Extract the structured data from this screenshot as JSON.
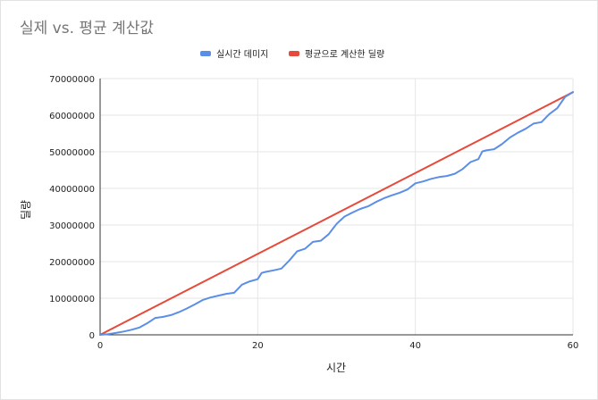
{
  "chart_data": {
    "type": "line",
    "title": "실제 vs. 평균 계산값",
    "xlabel": "시간",
    "ylabel": "딜량",
    "xlim": [
      0,
      60
    ],
    "ylim": [
      0,
      70000000
    ],
    "x_ticks": [
      "0",
      "20",
      "40",
      "60"
    ],
    "y_ticks": [
      "0",
      "10000000",
      "20000000",
      "30000000",
      "40000000",
      "50000000",
      "60000000",
      "70000000"
    ],
    "grid": true,
    "legend_position": "top",
    "series": [
      {
        "name": "실시간 데미지",
        "color": "#5b8ee6",
        "points": [
          [
            0,
            0
          ],
          [
            1,
            200000
          ],
          [
            2,
            500000
          ],
          [
            3,
            900000
          ],
          [
            4,
            1400000
          ],
          [
            5,
            2000000
          ],
          [
            6,
            3200000
          ],
          [
            7,
            4600000
          ],
          [
            8,
            4900000
          ],
          [
            9,
            5400000
          ],
          [
            10,
            6200000
          ],
          [
            11,
            7200000
          ],
          [
            12,
            8300000
          ],
          [
            13,
            9500000
          ],
          [
            14,
            10200000
          ],
          [
            15,
            10700000
          ],
          [
            16,
            11200000
          ],
          [
            17,
            11500000
          ],
          [
            18,
            13700000
          ],
          [
            19,
            14600000
          ],
          [
            20,
            15200000
          ],
          [
            20.5,
            16900000
          ],
          [
            21,
            17200000
          ],
          [
            22,
            17600000
          ],
          [
            23,
            18100000
          ],
          [
            24,
            20300000
          ],
          [
            25,
            22800000
          ],
          [
            26,
            23500000
          ],
          [
            27,
            25400000
          ],
          [
            28,
            25700000
          ],
          [
            29,
            27500000
          ],
          [
            30,
            30300000
          ],
          [
            31,
            32300000
          ],
          [
            32,
            33400000
          ],
          [
            33,
            34400000
          ],
          [
            34,
            35100000
          ],
          [
            35,
            36300000
          ],
          [
            36,
            37300000
          ],
          [
            37,
            38100000
          ],
          [
            38,
            38800000
          ],
          [
            39,
            39700000
          ],
          [
            40,
            41400000
          ],
          [
            41,
            41900000
          ],
          [
            42,
            42600000
          ],
          [
            43,
            43100000
          ],
          [
            44,
            43400000
          ],
          [
            45,
            44000000
          ],
          [
            46,
            45300000
          ],
          [
            47,
            47200000
          ],
          [
            48,
            48000000
          ],
          [
            48.5,
            50100000
          ],
          [
            49,
            50400000
          ],
          [
            50,
            50700000
          ],
          [
            51,
            52100000
          ],
          [
            52,
            53900000
          ],
          [
            53,
            55200000
          ],
          [
            54,
            56300000
          ],
          [
            55,
            57700000
          ],
          [
            56,
            58100000
          ],
          [
            57,
            60300000
          ],
          [
            58,
            61900000
          ],
          [
            59,
            65000000
          ],
          [
            60,
            66300000
          ]
        ]
      },
      {
        "name": "평균으로 계산한 딜량",
        "color": "#e64a3b",
        "points": [
          [
            0,
            0
          ],
          [
            60,
            66300000
          ]
        ]
      }
    ]
  }
}
